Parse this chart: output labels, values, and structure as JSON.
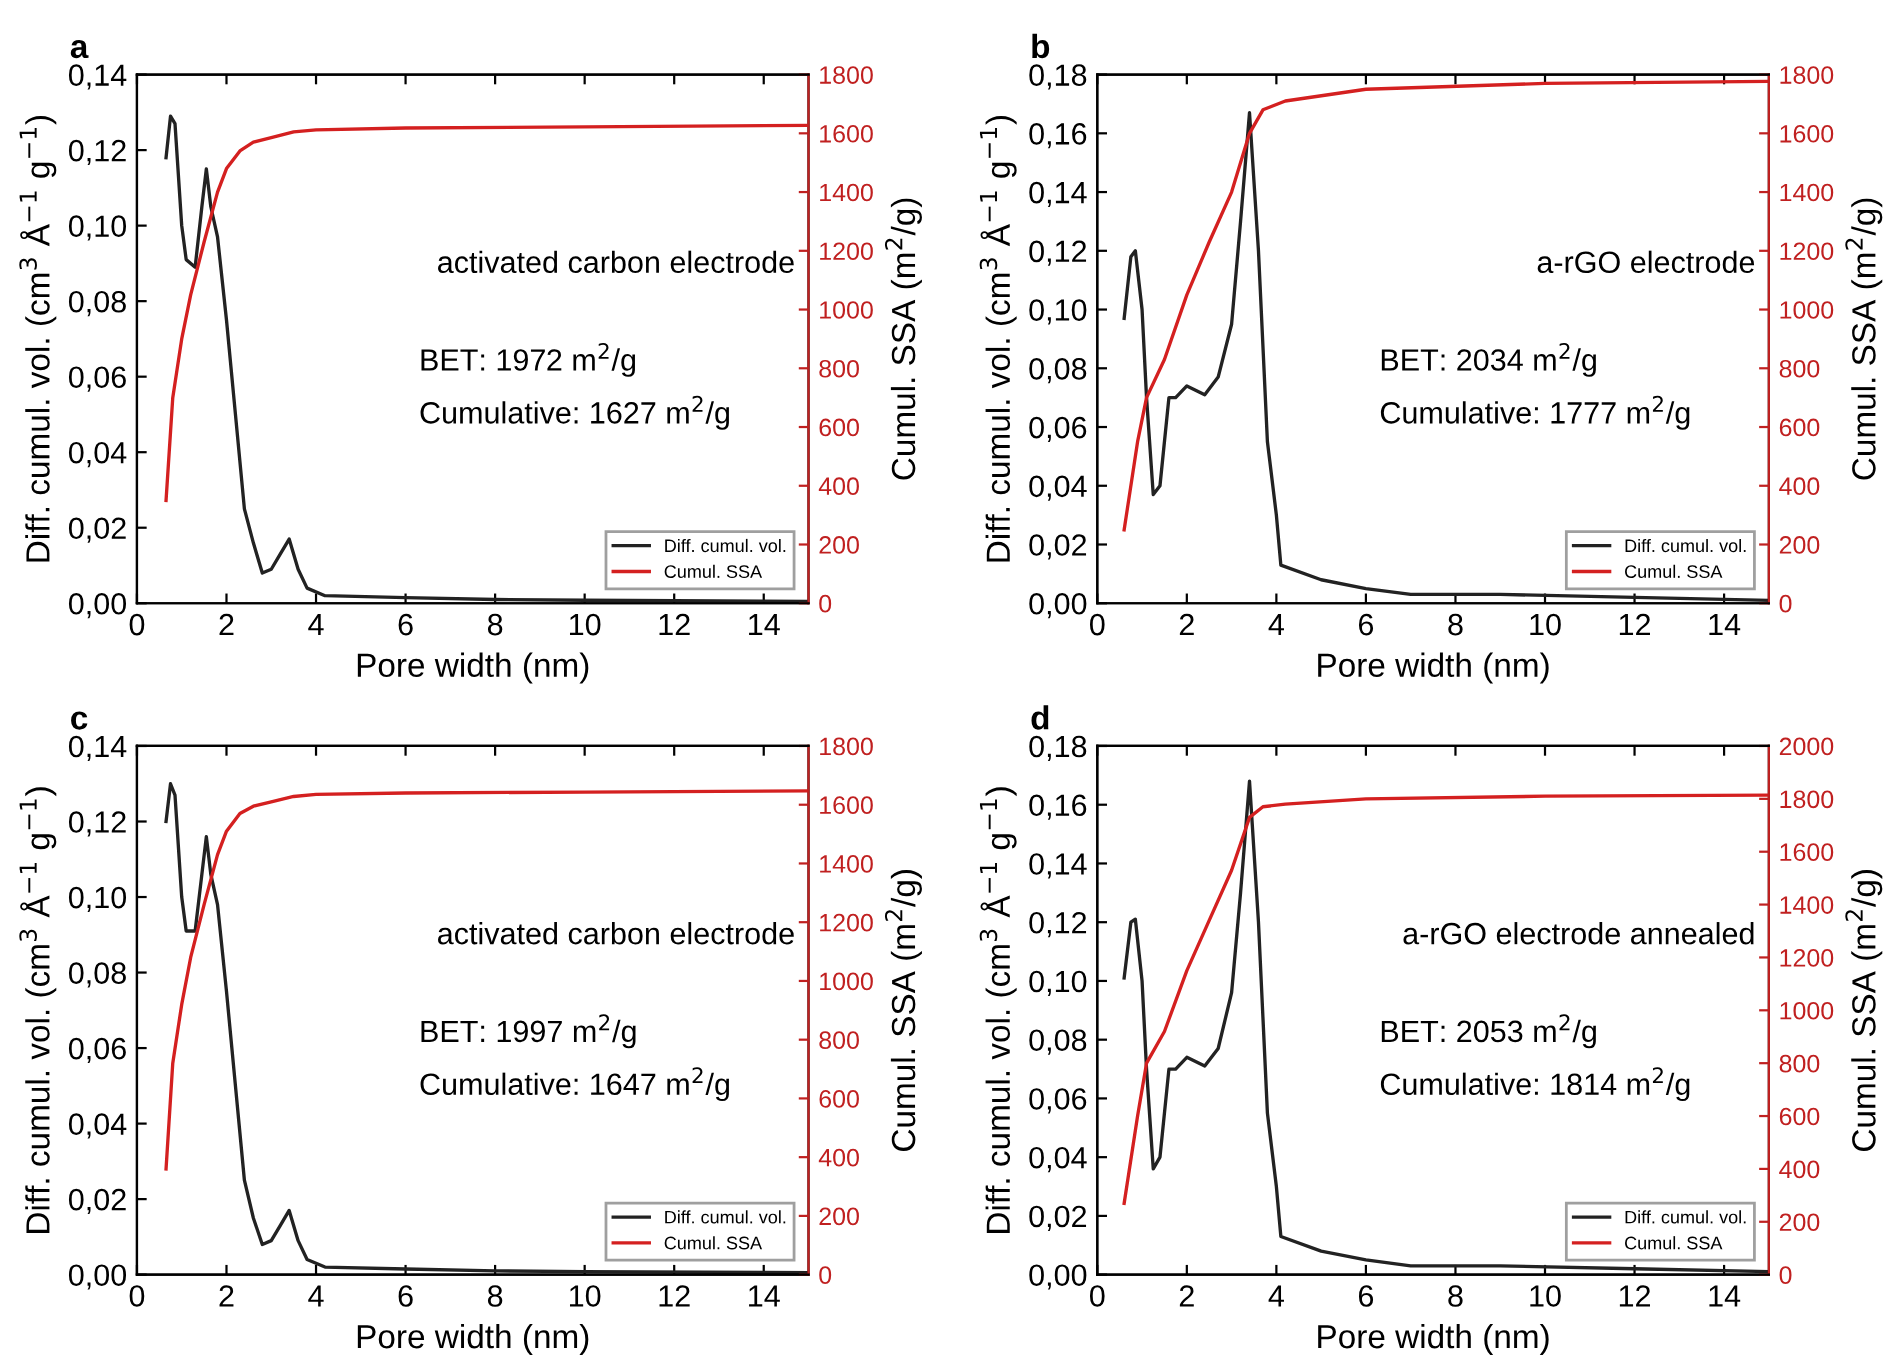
{
  "chart_data": [
    {
      "type": "line",
      "title": "a",
      "xlabel": "Pore width (nm)",
      "ylabel": "Diff. cumul. vol. (cm$^{3}$ Å$^{−1}$ g$^{−1}$)",
      "y2label": "Cumul. SSA (m$^{2}$/g)",
      "legend": "bottom right",
      "annotations": [
        "activated carbon electrode",
        "BET: 1972 m$^{2}$/g",
        "Cumulative: 1627 m$^{2}$/g"
      ],
      "xlim": [
        0,
        15
      ],
      "xticks": [
        0,
        2,
        4,
        6,
        8,
        10,
        12,
        14
      ],
      "ylim": [
        0,
        0.14
      ],
      "yticks": [
        {
          "value": 0,
          "label": "0,00"
        },
        {
          "value": 0.02,
          "label": "0,02"
        },
        {
          "value": 0.04,
          "label": "0,04"
        },
        {
          "value": 0.06,
          "label": "0,06"
        },
        {
          "value": 0.08,
          "label": "0,08"
        },
        {
          "value": 0.1,
          "label": "0,10"
        },
        {
          "value": 0.12,
          "label": "0,12"
        },
        {
          "value": 0.14,
          "label": "0,14"
        }
      ],
      "y2lim": [
        0,
        1800
      ],
      "y2ticks": [
        0,
        200,
        400,
        600,
        800,
        1000,
        1200,
        1400,
        1600,
        1800
      ],
      "series": [
        {
          "name": "Diff. cumul. vol.",
          "color": "#222222",
          "x": [
            0.65,
            0.75,
            0.85,
            1.0,
            1.1,
            1.3,
            1.45,
            1.55,
            1.65,
            1.8,
            2.0,
            2.2,
            2.4,
            2.6,
            2.8,
            3.0,
            3.2,
            3.4,
            3.6,
            3.8,
            4.2,
            6,
            8,
            10,
            15
          ],
          "values": [
            0.118,
            0.129,
            0.127,
            0.1,
            0.091,
            0.089,
            0.105,
            0.115,
            0.105,
            0.097,
            0.075,
            0.05,
            0.025,
            0.016,
            0.008,
            0.009,
            0.013,
            0.017,
            0.009,
            0.004,
            0.002,
            0.0015,
            0.001,
            0.0008,
            0.0005
          ]
        },
        {
          "name": "Cumul. SSA",
          "color": "#d42020",
          "axis": "y2",
          "x": [
            0.65,
            0.8,
            1.0,
            1.2,
            1.5,
            1.8,
            2.0,
            2.3,
            2.6,
            3.0,
            3.5,
            4,
            6,
            10,
            15
          ],
          "values": [
            350,
            700,
            900,
            1050,
            1230,
            1400,
            1480,
            1540,
            1570,
            1585,
            1605,
            1612,
            1618,
            1622,
            1627
          ]
        }
      ]
    },
    {
      "type": "line",
      "title": "b",
      "xlabel": "Pore width (nm)",
      "ylabel": "Diff. cumul. vol. (cm$^{3}$ Å$^{−1}$ g$^{−1}$)",
      "y2label": "Cumul. SSA (m$^{2}$/g)",
      "legend": "bottom right",
      "annotations": [
        "a-rGO electrode",
        "BET: 2034 m$^{2}$/g",
        "Cumulative: 1777 m$^{2}$/g"
      ],
      "xlim": [
        0,
        15
      ],
      "xticks": [
        0,
        2,
        4,
        6,
        8,
        10,
        12,
        14
      ],
      "ylim": [
        0,
        0.18
      ],
      "yticks": [
        {
          "value": 0,
          "label": "0,00"
        },
        {
          "value": 0.02,
          "label": "0,02"
        },
        {
          "value": 0.04,
          "label": "0,04"
        },
        {
          "value": 0.06,
          "label": "0,06"
        },
        {
          "value": 0.08,
          "label": "0,08"
        },
        {
          "value": 0.1,
          "label": "0,10"
        },
        {
          "value": 0.12,
          "label": "0,12"
        },
        {
          "value": 0.14,
          "label": "0,14"
        },
        {
          "value": 0.16,
          "label": "0,16"
        },
        {
          "value": 0.18,
          "label": "0,18"
        }
      ],
      "y2lim": [
        0,
        1800
      ],
      "y2ticks": [
        0,
        200,
        400,
        600,
        800,
        1000,
        1200,
        1400,
        1600,
        1800
      ],
      "series": [
        {
          "name": "Diff. cumul. vol.",
          "color": "#222222",
          "x": [
            0.6,
            0.75,
            0.85,
            1.0,
            1.1,
            1.25,
            1.4,
            1.6,
            1.75,
            2.0,
            2.4,
            2.7,
            3.0,
            3.2,
            3.4,
            3.6,
            3.8,
            4.0,
            4.1,
            5,
            6,
            7,
            9,
            12,
            15
          ],
          "values": [
            0.097,
            0.118,
            0.12,
            0.1,
            0.07,
            0.037,
            0.04,
            0.07,
            0.07,
            0.074,
            0.071,
            0.077,
            0.095,
            0.13,
            0.167,
            0.12,
            0.055,
            0.03,
            0.013,
            0.008,
            0.005,
            0.003,
            0.003,
            0.002,
            0.001
          ]
        },
        {
          "name": "Cumul. SSA",
          "color": "#d42020",
          "axis": "y2",
          "x": [
            0.6,
            0.9,
            1.1,
            1.5,
            2.0,
            2.5,
            3.0,
            3.4,
            3.7,
            4.2,
            6,
            10,
            15
          ],
          "values": [
            250,
            550,
            700,
            830,
            1050,
            1230,
            1400,
            1600,
            1680,
            1710,
            1750,
            1770,
            1777
          ]
        }
      ]
    },
    {
      "type": "line",
      "title": "c",
      "xlabel": "Pore width (nm)",
      "ylabel": "Diff. cumul. vol. (cm$^{3}$ Å$^{−1}$ g$^{−1}$)",
      "y2label": "Cumul. SSA (m$^{2}$/g)",
      "legend": "bottom right",
      "annotations": [
        "activated carbon electrode",
        "BET: 1997 m$^{2}$/g",
        "Cumulative: 1647 m$^{2}$/g"
      ],
      "xlim": [
        0,
        15
      ],
      "xticks": [
        0,
        2,
        4,
        6,
        8,
        10,
        12,
        14
      ],
      "ylim": [
        0,
        0.14
      ],
      "yticks": [
        {
          "value": 0,
          "label": "0,00"
        },
        {
          "value": 0.02,
          "label": "0,02"
        },
        {
          "value": 0.04,
          "label": "0,04"
        },
        {
          "value": 0.06,
          "label": "0,06"
        },
        {
          "value": 0.08,
          "label": "0,08"
        },
        {
          "value": 0.1,
          "label": "0,10"
        },
        {
          "value": 0.12,
          "label": "0,12"
        },
        {
          "value": 0.14,
          "label": "0,14"
        }
      ],
      "y2lim": [
        0,
        1800
      ],
      "y2ticks": [
        0,
        200,
        400,
        600,
        800,
        1000,
        1200,
        1400,
        1600,
        1800
      ],
      "series": [
        {
          "name": "Diff. cumul. vol.",
          "color": "#222222",
          "x": [
            0.65,
            0.75,
            0.85,
            1.0,
            1.1,
            1.3,
            1.45,
            1.55,
            1.65,
            1.8,
            2.0,
            2.2,
            2.4,
            2.6,
            2.8,
            3.0,
            3.2,
            3.4,
            3.6,
            3.8,
            4.2,
            6,
            8,
            10,
            15
          ],
          "values": [
            0.12,
            0.13,
            0.127,
            0.1,
            0.091,
            0.091,
            0.106,
            0.116,
            0.106,
            0.098,
            0.075,
            0.05,
            0.025,
            0.015,
            0.008,
            0.009,
            0.013,
            0.017,
            0.009,
            0.004,
            0.002,
            0.0015,
            0.001,
            0.0008,
            0.0005
          ]
        },
        {
          "name": "Cumul. SSA",
          "color": "#d42020",
          "axis": "y2",
          "x": [
            0.65,
            0.8,
            1.0,
            1.2,
            1.5,
            1.8,
            2.0,
            2.3,
            2.6,
            3.0,
            3.5,
            4,
            6,
            10,
            15
          ],
          "values": [
            360,
            720,
            920,
            1080,
            1260,
            1430,
            1510,
            1570,
            1595,
            1610,
            1628,
            1635,
            1640,
            1643,
            1647
          ]
        }
      ]
    },
    {
      "type": "line",
      "title": "d",
      "xlabel": "Pore width (nm)",
      "ylabel": "Diff. cumul. vol. (cm$^{3}$ Å$^{−1}$ g$^{−1}$)",
      "y2label": "Cumul. SSA (m$^{2}$/g)",
      "legend": "bottom right",
      "annotations": [
        "a-rGO electrode annealed",
        "BET: 2053 m$^{2}$/g",
        "Cumulative: 1814 m$^{2}$/g"
      ],
      "xlim": [
        0,
        15
      ],
      "xticks": [
        0,
        2,
        4,
        6,
        8,
        10,
        12,
        14
      ],
      "ylim": [
        0,
        0.18
      ],
      "yticks": [
        {
          "value": 0,
          "label": "0,00"
        },
        {
          "value": 0.02,
          "label": "0,02"
        },
        {
          "value": 0.04,
          "label": "0,04"
        },
        {
          "value": 0.06,
          "label": "0,06"
        },
        {
          "value": 0.08,
          "label": "0,08"
        },
        {
          "value": 0.1,
          "label": "0,10"
        },
        {
          "value": 0.12,
          "label": "0,12"
        },
        {
          "value": 0.14,
          "label": "0,14"
        },
        {
          "value": 0.16,
          "label": "0,16"
        },
        {
          "value": 0.18,
          "label": "0,18"
        }
      ],
      "y2lim": [
        0,
        2000
      ],
      "y2ticks": [
        0,
        200,
        400,
        600,
        800,
        1000,
        1200,
        1400,
        1600,
        1800,
        2000
      ],
      "series": [
        {
          "name": "Diff. cumul. vol.",
          "color": "#222222",
          "x": [
            0.6,
            0.75,
            0.85,
            1.0,
            1.1,
            1.25,
            1.4,
            1.6,
            1.75,
            2.0,
            2.4,
            2.7,
            3.0,
            3.2,
            3.4,
            3.6,
            3.8,
            4.0,
            4.1,
            5,
            6,
            7,
            9,
            12,
            15
          ],
          "values": [
            0.101,
            0.12,
            0.121,
            0.1,
            0.07,
            0.036,
            0.04,
            0.07,
            0.07,
            0.074,
            0.071,
            0.077,
            0.096,
            0.13,
            0.168,
            0.12,
            0.055,
            0.03,
            0.013,
            0.008,
            0.005,
            0.003,
            0.003,
            0.002,
            0.001
          ]
        },
        {
          "name": "Cumul. SSA",
          "color": "#d42020",
          "axis": "y2",
          "x": [
            0.6,
            0.9,
            1.1,
            1.5,
            2.0,
            2.5,
            3.0,
            3.4,
            3.7,
            4.2,
            6,
            10,
            15
          ],
          "values": [
            270,
            600,
            800,
            920,
            1150,
            1340,
            1530,
            1730,
            1770,
            1780,
            1800,
            1810,
            1814
          ]
        }
      ]
    }
  ]
}
